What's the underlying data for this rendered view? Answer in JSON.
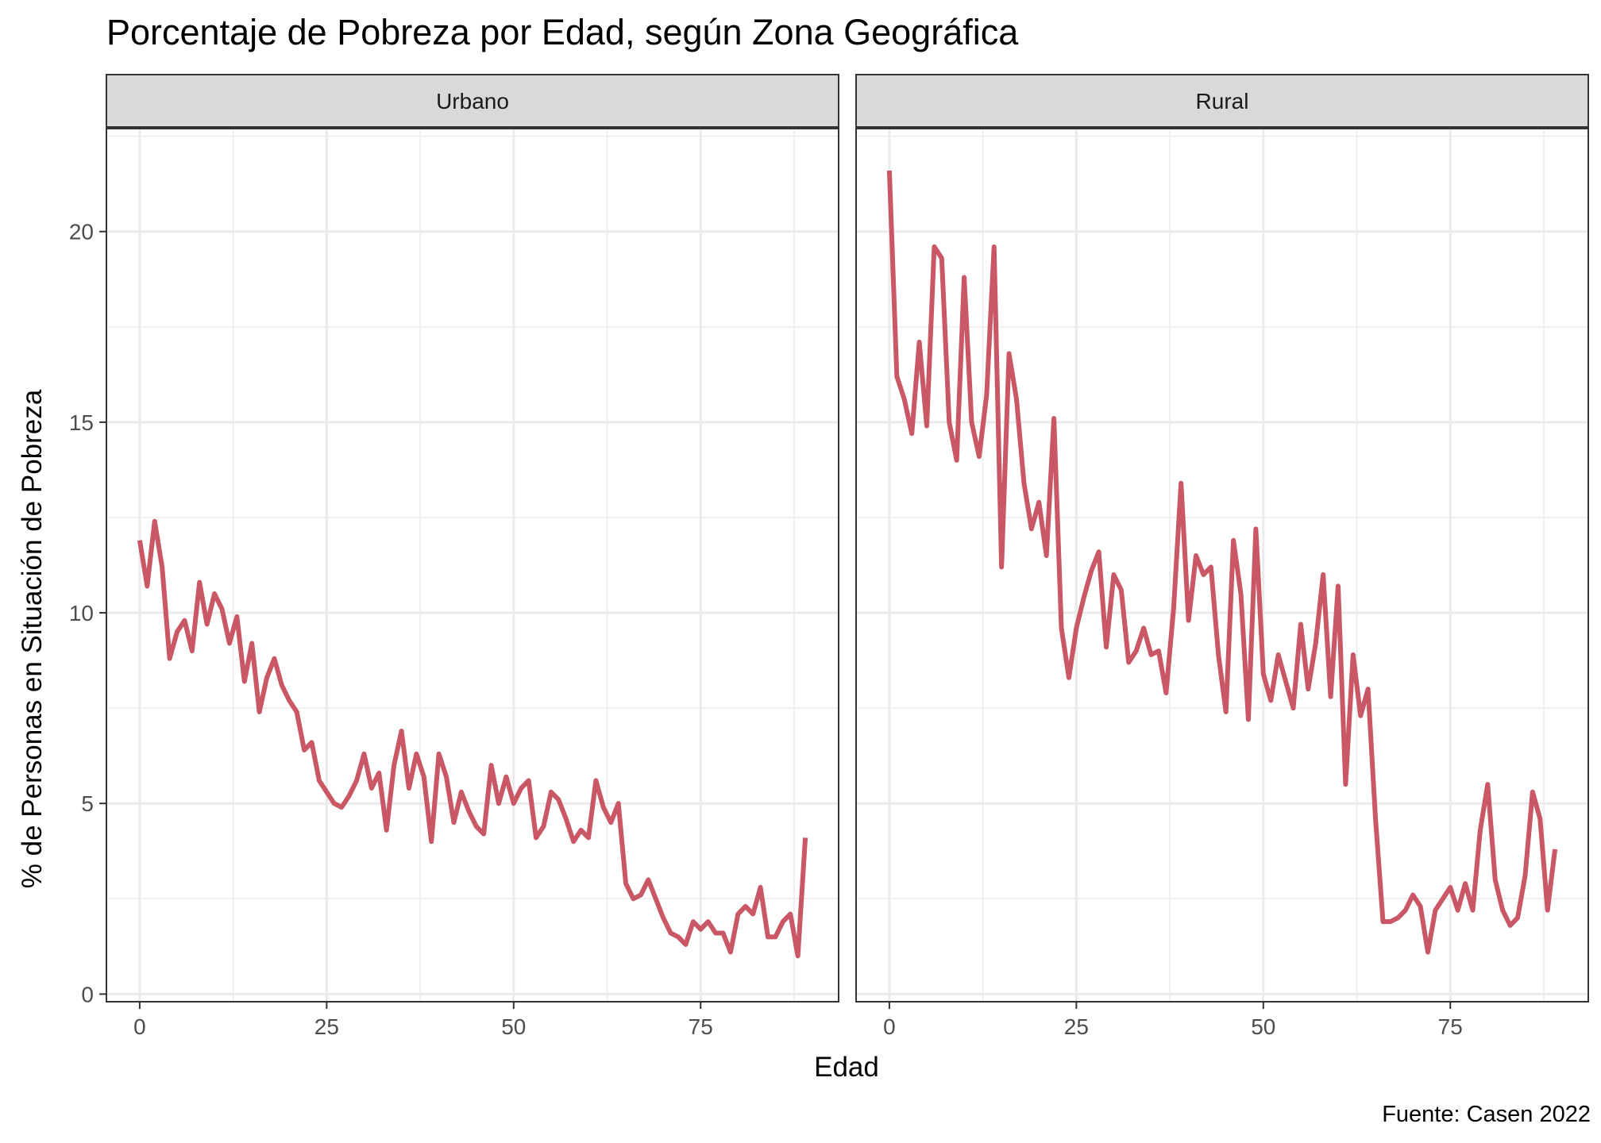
{
  "chart_data": {
    "type": "line",
    "title": "Porcentaje de Pobreza por Edad, según Zona Geográfica",
    "xlabel": "Edad",
    "ylabel": "% de Personas en Situación de Pobreza",
    "caption": "Fuente: Casen 2022",
    "xlim": [
      -4.45,
      93.45
    ],
    "ylim": [
      -0.2,
      22.7
    ],
    "x_ticks": [
      0,
      25,
      50,
      75
    ],
    "x_tick_labels": [
      "0",
      "25",
      "50",
      "75"
    ],
    "y_ticks": [
      0,
      5,
      10,
      15,
      20
    ],
    "y_tick_labels": [
      "0",
      "5",
      "10",
      "15",
      "20"
    ],
    "grid": true,
    "line_color": "#C95765",
    "panels": [
      {
        "strip_label": "Urbano",
        "x": [
          0,
          1,
          2,
          3,
          4,
          5,
          6,
          7,
          8,
          9,
          10,
          11,
          12,
          13,
          14,
          15,
          16,
          17,
          18,
          19,
          20,
          21,
          22,
          23,
          24,
          25,
          26,
          27,
          28,
          29,
          30,
          31,
          32,
          33,
          34,
          35,
          36,
          37,
          38,
          39,
          40,
          41,
          42,
          43,
          44,
          45,
          46,
          47,
          48,
          49,
          50,
          51,
          52,
          53,
          54,
          55,
          56,
          57,
          58,
          59,
          60,
          61,
          62,
          63,
          64,
          65,
          66,
          67,
          68,
          69,
          70,
          71,
          72,
          73,
          74,
          75,
          76,
          77,
          78,
          79,
          80,
          81,
          82,
          83,
          84,
          85,
          86,
          87,
          88,
          89
        ],
        "y": [
          11.9,
          10.7,
          12.4,
          11.2,
          8.8,
          9.5,
          9.8,
          9.0,
          10.8,
          9.7,
          10.5,
          10.1,
          9.2,
          9.9,
          8.2,
          9.2,
          7.4,
          8.3,
          8.8,
          8.1,
          7.7,
          7.4,
          6.4,
          6.6,
          5.6,
          5.3,
          5.0,
          4.9,
          5.2,
          5.6,
          6.3,
          5.4,
          5.8,
          4.3,
          6.0,
          6.9,
          5.4,
          6.3,
          5.7,
          4.0,
          6.3,
          5.7,
          4.5,
          5.3,
          4.8,
          4.4,
          4.2,
          6.0,
          5.0,
          5.7,
          5.0,
          5.4,
          5.6,
          4.1,
          4.4,
          5.3,
          5.1,
          4.6,
          4.0,
          4.3,
          4.1,
          5.6,
          4.9,
          4.5,
          5.0,
          2.9,
          2.5,
          2.6,
          3.0,
          2.5,
          2.0,
          1.6,
          1.5,
          1.3,
          1.9,
          1.7,
          1.9,
          1.6,
          1.6,
          1.1,
          2.1,
          2.3,
          2.1,
          2.8,
          1.5,
          1.5,
          1.9,
          2.1,
          1.0,
          4.1
        ]
      },
      {
        "strip_label": "Rural",
        "x": [
          0,
          1,
          2,
          3,
          4,
          5,
          6,
          7,
          8,
          9,
          10,
          11,
          12,
          13,
          14,
          15,
          16,
          17,
          18,
          19,
          20,
          21,
          22,
          23,
          24,
          25,
          26,
          27,
          28,
          29,
          30,
          31,
          32,
          33,
          34,
          35,
          36,
          37,
          38,
          39,
          40,
          41,
          42,
          43,
          44,
          45,
          46,
          47,
          48,
          49,
          50,
          51,
          52,
          53,
          54,
          55,
          56,
          57,
          58,
          59,
          60,
          61,
          62,
          63,
          64,
          65,
          66,
          67,
          68,
          69,
          70,
          71,
          72,
          73,
          74,
          75,
          76,
          77,
          78,
          79,
          80,
          81,
          82,
          83,
          84,
          85,
          86,
          87,
          88,
          89
        ],
        "y": [
          21.6,
          16.2,
          15.6,
          14.7,
          17.1,
          14.9,
          19.6,
          19.3,
          15.0,
          14.0,
          18.8,
          15.0,
          14.1,
          15.7,
          19.6,
          11.2,
          16.8,
          15.6,
          13.4,
          12.2,
          12.9,
          11.5,
          15.1,
          9.6,
          8.3,
          9.6,
          10.4,
          11.1,
          11.6,
          9.1,
          11.0,
          10.6,
          8.7,
          9.0,
          9.6,
          8.9,
          9.0,
          7.9,
          10.1,
          13.4,
          9.8,
          11.5,
          11.0,
          11.2,
          8.9,
          7.4,
          11.9,
          10.5,
          7.2,
          12.2,
          8.4,
          7.7,
          8.9,
          8.2,
          7.5,
          9.7,
          8.0,
          9.2,
          11.0,
          7.8,
          10.7,
          5.5,
          8.9,
          7.3,
          8.0,
          4.6,
          1.9,
          1.9,
          2.0,
          2.2,
          2.6,
          2.3,
          1.1,
          2.2,
          2.5,
          2.8,
          2.2,
          2.9,
          2.2,
          4.3,
          5.5,
          3.0,
          2.2,
          1.8,
          2.0,
          3.1,
          5.3,
          4.6,
          2.2,
          3.8
        ]
      }
    ]
  }
}
